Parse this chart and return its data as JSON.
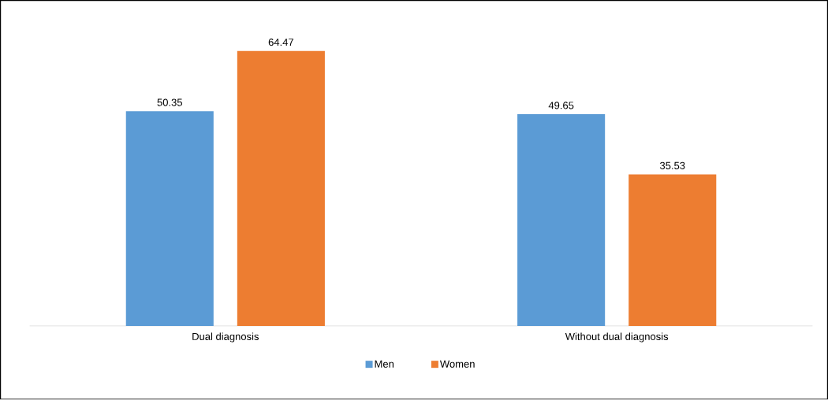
{
  "chart_data": {
    "type": "bar",
    "categories": [
      "Dual diagnosis",
      "Without dual diagnosis"
    ],
    "series": [
      {
        "name": "Men",
        "color": "#5b9bd5",
        "values": [
          50.35,
          49.65
        ]
      },
      {
        "name": "Women",
        "color": "#ed7d31",
        "values": [
          64.47,
          35.53
        ]
      }
    ],
    "data_labels": true,
    "legend": "bottom"
  }
}
